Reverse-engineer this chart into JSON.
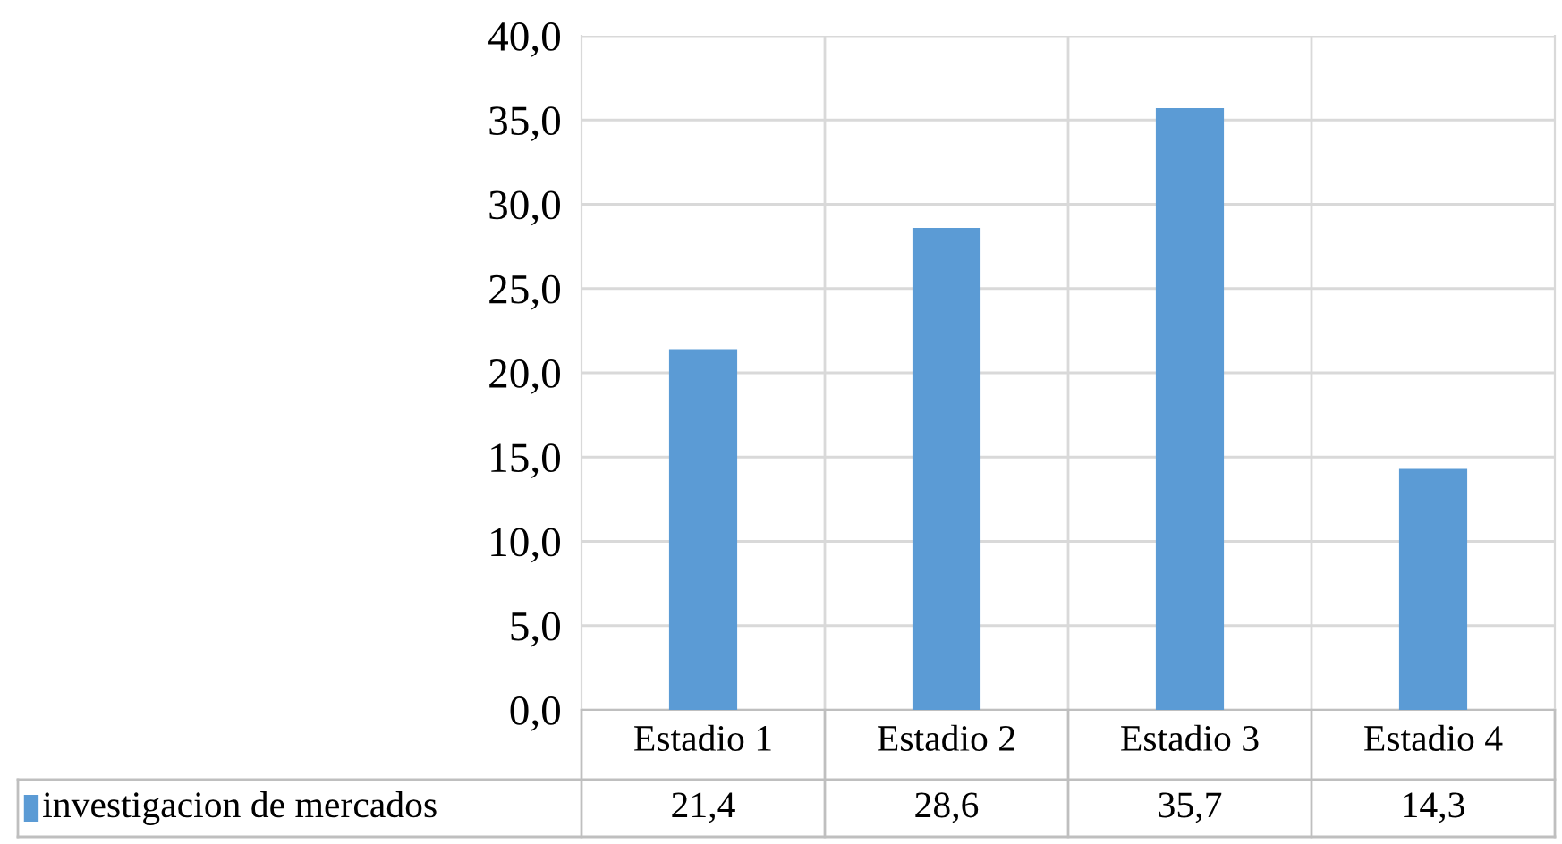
{
  "chart_data": {
    "type": "bar",
    "categories": [
      "Estadio 1",
      "Estadio 2",
      "Estadio 3",
      "Estadio 4"
    ],
    "series": [
      {
        "name": "investigacion de mercados",
        "color": "#5b9bd5",
        "values": [
          21.4,
          28.6,
          35.7,
          14.3
        ]
      }
    ],
    "value_labels": [
      "21,4",
      "28,6",
      "35,7",
      "14,3"
    ],
    "ylim": [
      0,
      40
    ],
    "yticks": [
      {
        "value": 0,
        "label": "0,0"
      },
      {
        "value": 5,
        "label": "5,0"
      },
      {
        "value": 10,
        "label": "10,0"
      },
      {
        "value": 15,
        "label": "15,0"
      },
      {
        "value": 20,
        "label": "20,0"
      },
      {
        "value": 25,
        "label": "25,0"
      },
      {
        "value": 30,
        "label": "30,0"
      },
      {
        "value": 35,
        "label": "35,0"
      },
      {
        "value": 40,
        "label": "40,0"
      }
    ],
    "grid": "y",
    "legend": "bottom"
  }
}
